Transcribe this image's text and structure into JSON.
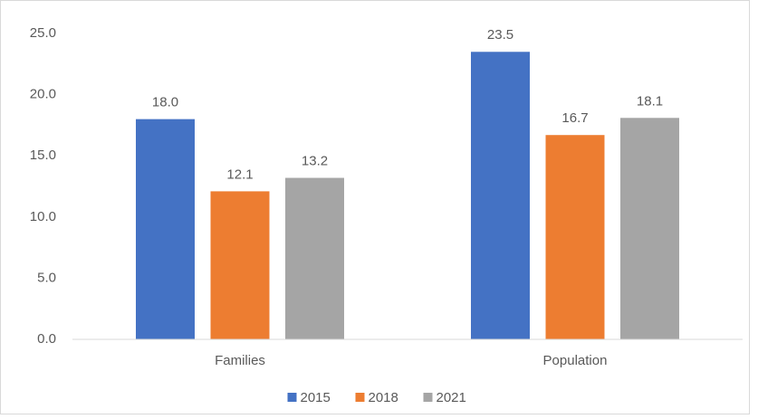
{
  "chart_data": {
    "type": "bar",
    "categories": [
      "Families",
      "Population"
    ],
    "series": [
      {
        "name": "2015",
        "color": "#4472c4",
        "values": [
          18.0,
          23.5
        ],
        "value_labels": [
          "18.0",
          "23.5"
        ]
      },
      {
        "name": "2018",
        "color": "#ed7d31",
        "values": [
          12.1,
          16.7
        ],
        "value_labels": [
          "12.1",
          "16.7"
        ]
      },
      {
        "name": "2021",
        "color": "#a5a5a5",
        "values": [
          13.2,
          18.1
        ],
        "value_labels": [
          "13.2",
          "18.1"
        ]
      }
    ],
    "ylim": [
      0,
      25
    ],
    "yticks": [
      {
        "value": 0,
        "label": "0.0"
      },
      {
        "value": 5,
        "label": "5.0"
      },
      {
        "value": 10,
        "label": "10.0"
      },
      {
        "value": 15,
        "label": "15.0"
      },
      {
        "value": 20,
        "label": "20.0"
      },
      {
        "value": 25,
        "label": "25.0"
      }
    ],
    "grid": false,
    "legend": "bottom"
  }
}
